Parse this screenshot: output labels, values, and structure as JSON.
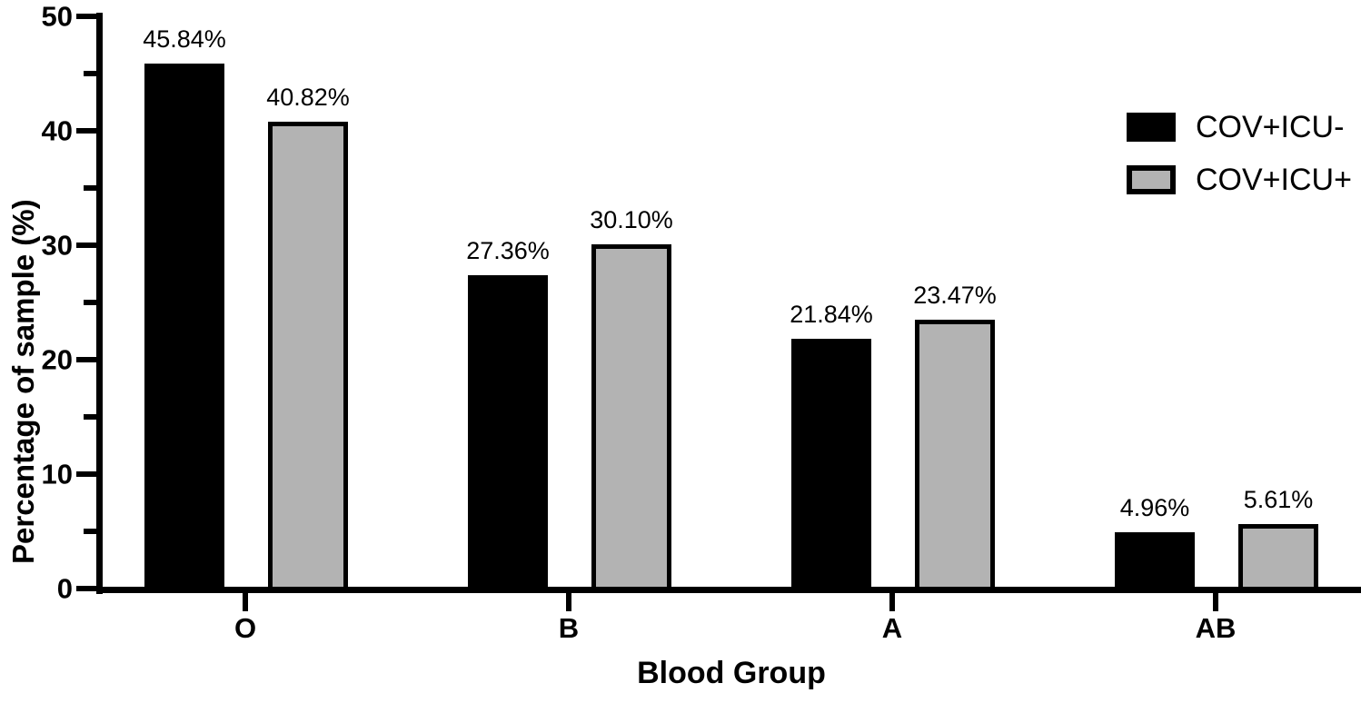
{
  "figure": {
    "background": "#ffffff",
    "text_color": "#000000"
  },
  "chart_data": {
    "type": "bar",
    "title": "",
    "xlabel": "Blood Group",
    "ylabel": "Percentage of sample (%)",
    "categories": [
      "O",
      "B",
      "A",
      "AB"
    ],
    "series": [
      {
        "name": "COV+ICU-",
        "fill": "#000000",
        "outline": "#000000",
        "values": [
          45.84,
          27.36,
          21.84,
          4.96
        ],
        "value_labels": [
          "45.84%",
          "27.36%",
          "21.84%",
          "4.96%"
        ]
      },
      {
        "name": "COV+ICU+",
        "fill": "#b3b3b3",
        "outline": "#000000",
        "values": [
          40.82,
          30.1,
          23.47,
          5.61
        ],
        "value_labels": [
          "40.82%",
          "30.10%",
          "23.47%",
          "5.61%"
        ]
      }
    ],
    "ylim": [
      0,
      50
    ],
    "yticks_major": [
      0,
      10,
      20,
      30,
      40,
      50
    ],
    "yticks_minor": [
      5,
      15,
      25,
      35,
      45
    ],
    "ytick_labels": [
      "0",
      "10",
      "20",
      "30",
      "40",
      "50"
    ],
    "grid": false,
    "legend_position": "top-right"
  }
}
